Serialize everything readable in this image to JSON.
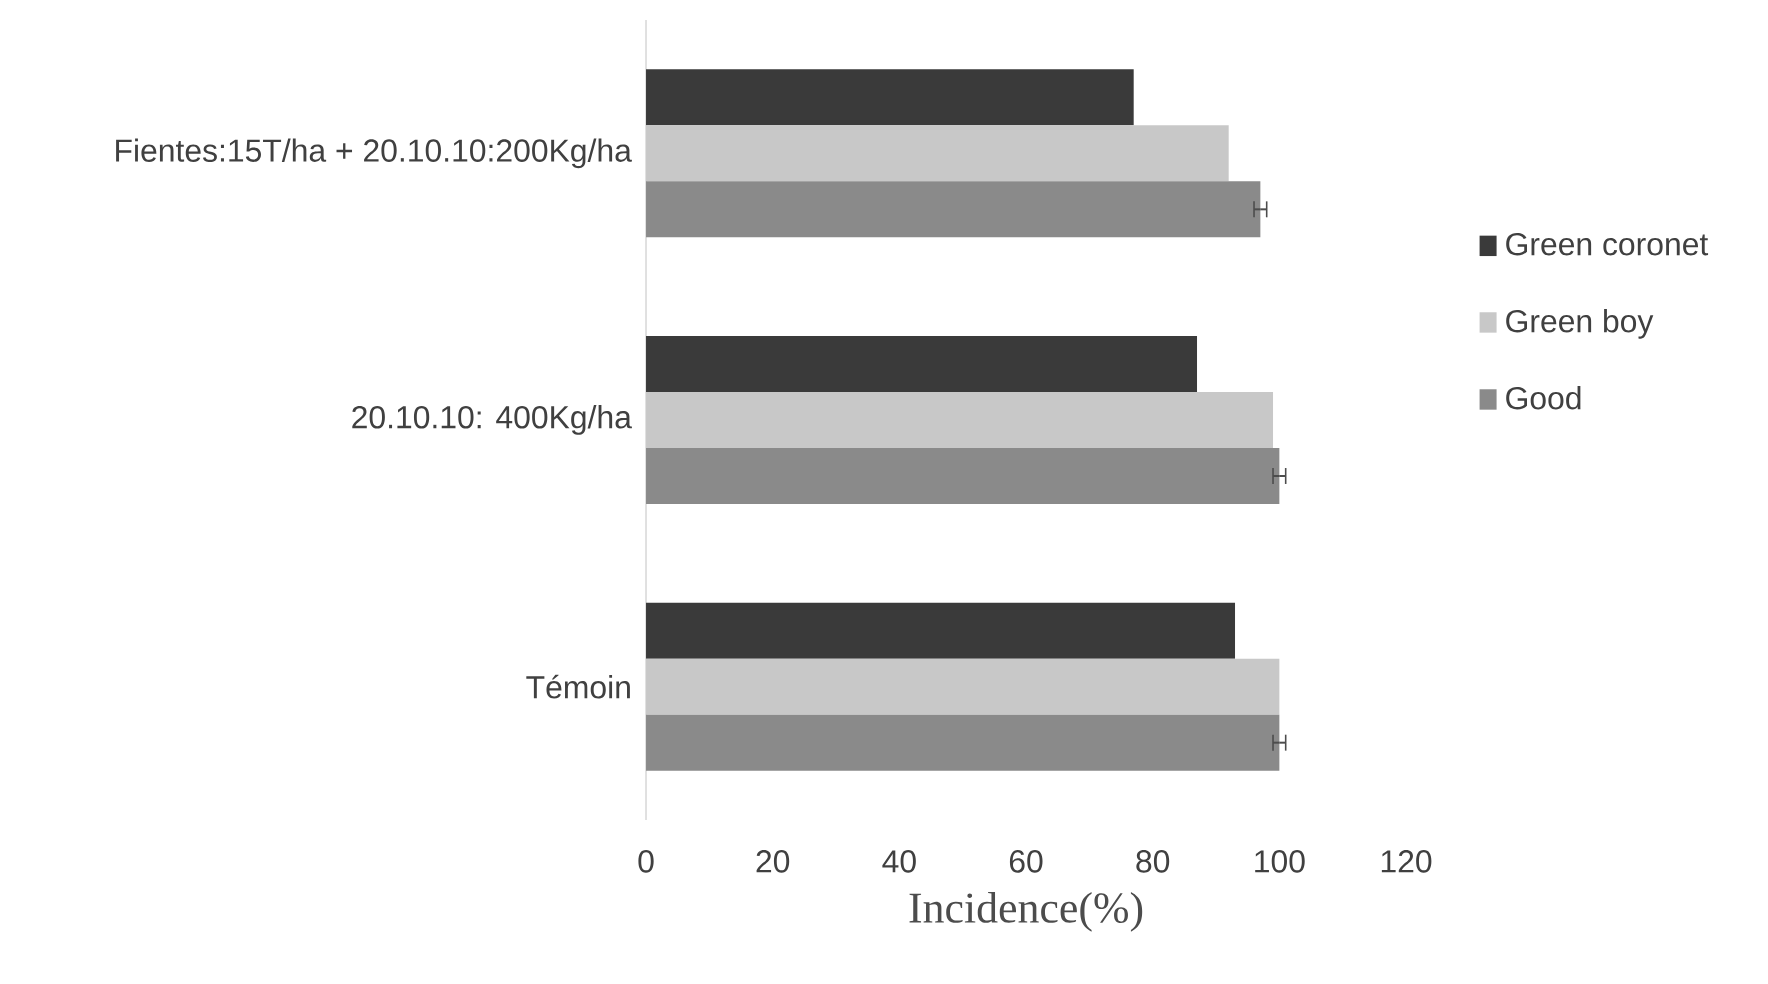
{
  "chart_data": {
    "type": "bar",
    "orientation": "horizontal",
    "xlabel": "Incidence(%)",
    "categories": [
      "Fientes:15T/ha + 20.10.10:200Kg/ha",
      "20.10.10: 400Kg/ha",
      "Témoin"
    ],
    "series": [
      {
        "name": "Green coronet",
        "color": "#3a3a3a",
        "values": [
          77,
          87,
          93
        ]
      },
      {
        "name": "Green boy",
        "color": "#c8c8c8",
        "values": [
          92,
          99,
          100
        ]
      },
      {
        "name": "Good",
        "color": "#8a8a8a",
        "values": [
          97,
          100,
          100
        ],
        "errors": [
          1,
          1,
          1
        ]
      }
    ],
    "xlim": [
      0,
      120
    ],
    "xticks": [
      0,
      20,
      40,
      60,
      80,
      100,
      120
    ],
    "grid": false,
    "legend": "right"
  }
}
